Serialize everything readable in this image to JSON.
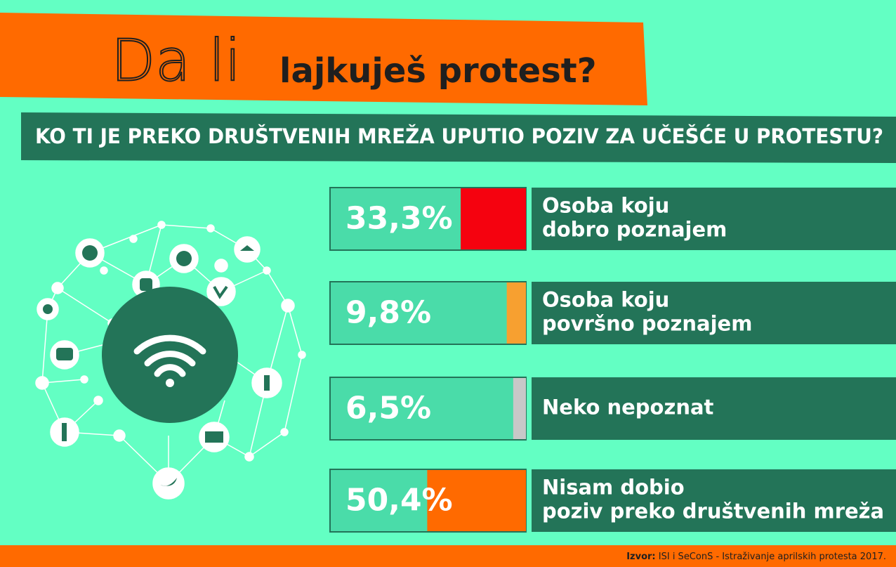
{
  "chart_data": {
    "type": "bar",
    "title_prefix": "Da li",
    "title": "lajkuješ protest?",
    "subtitle": "KO TI JE PREKO DRUŠTVENIH MREŽA UPUTIO POZIV ZA UČEŠĆE U PROTESTU?",
    "categories": [
      "Osoba koju\ndobro poznajem",
      "Osoba koju\npovršno poznajem",
      "Neko nepoznat",
      "Nisam dobio\npoziv preko društvenih mreža"
    ],
    "values": [
      33.3,
      9.8,
      6.5,
      50.4
    ],
    "value_labels": [
      "33,3%",
      "9,8%",
      "6,5%",
      "50,4%"
    ],
    "colors": [
      "#f5020f",
      "#f7a030",
      "#c8c8c8",
      "#ff6a00"
    ],
    "xlim": [
      0,
      100
    ],
    "source_label": "Izvor:",
    "source": "ISI i SeConS - Istraživanje aprilskih protesta 2017."
  }
}
